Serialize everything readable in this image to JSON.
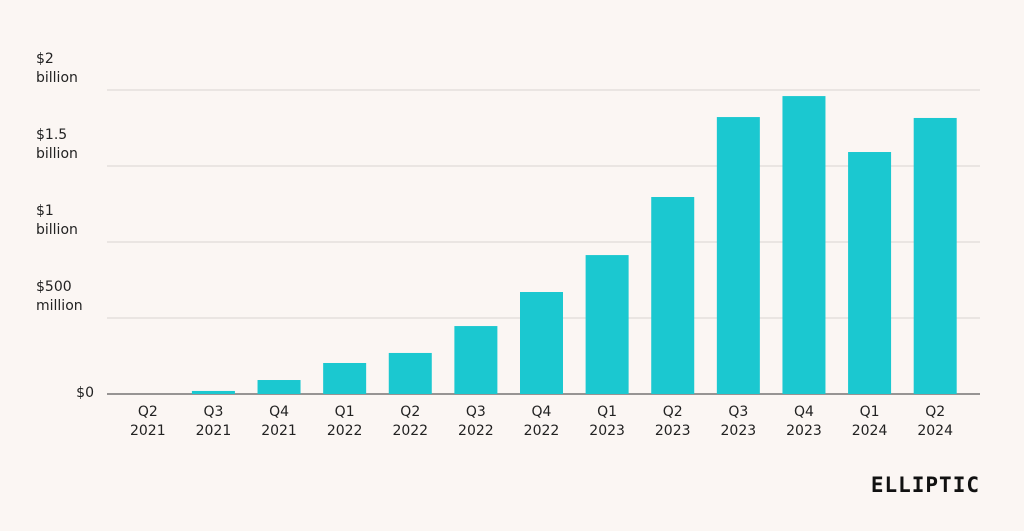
{
  "chart_data": {
    "type": "bar",
    "categories": [
      "Q2 2021",
      "Q3 2021",
      "Q4 2021",
      "Q1 2022",
      "Q2 2022",
      "Q3 2022",
      "Q4 2022",
      "Q1 2023",
      "Q2 2023",
      "Q3 2023",
      "Q4 2023",
      "Q1 2024",
      "Q2 2024"
    ],
    "values": [
      0,
      20000000,
      92000000,
      204000000,
      270000000,
      447000000,
      671000000,
      914000000,
      1296000000,
      1822000000,
      1960000000,
      1592000000,
      1816000000
    ],
    "color": "#1bc8d0",
    "ylim": [
      0,
      2000000000
    ],
    "yticks": [
      {
        "value": 0,
        "label": "$0"
      },
      {
        "value": 500000000,
        "label": "$500 million"
      },
      {
        "value": 1000000000,
        "label": "$1 billion"
      },
      {
        "value": 1500000000,
        "label": "$1.5 billion"
      },
      {
        "value": 2000000000,
        "label": "$2 billion"
      }
    ],
    "grid": true
  },
  "logo": "ELLIPTIC"
}
